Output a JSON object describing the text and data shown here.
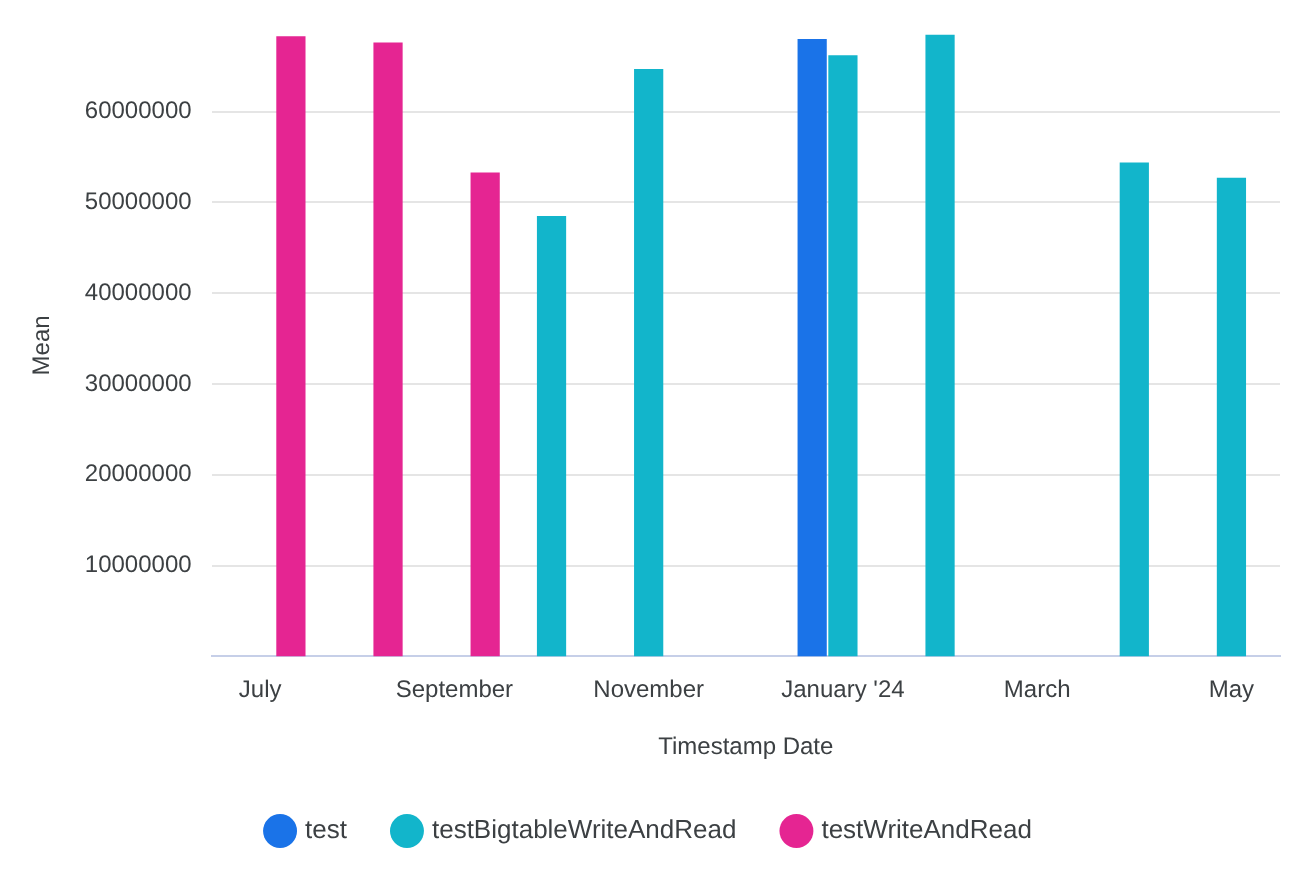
{
  "chart_data": {
    "type": "bar",
    "xlabel": "Timestamp Date",
    "ylabel": "Mean",
    "categories": [
      "July",
      null,
      "September",
      null,
      "November",
      null,
      "January '24",
      null,
      "March",
      null,
      "May"
    ],
    "series": [
      {
        "name": "test",
        "color": "#1a73e8",
        "values": [
          null,
          null,
          null,
          null,
          null,
          null,
          68000000,
          null,
          null,
          null,
          null
        ]
      },
      {
        "name": "testBigtableWriteAndRead",
        "color": "#12b5cb",
        "values": [
          null,
          null,
          null,
          48500000,
          64700000,
          null,
          66200000,
          68500000,
          null,
          54400000,
          52700000
        ]
      },
      {
        "name": "testWriteAndRead",
        "color": "#e52592",
        "values": [
          68300000,
          67600000,
          53300000,
          null,
          null,
          null,
          null,
          null,
          null,
          null,
          null
        ]
      }
    ],
    "ylim": [
      0,
      68500000
    ],
    "yticks": [
      10000000,
      20000000,
      30000000,
      40000000,
      50000000,
      60000000
    ],
    "grid": "y",
    "legend": "bottom"
  }
}
